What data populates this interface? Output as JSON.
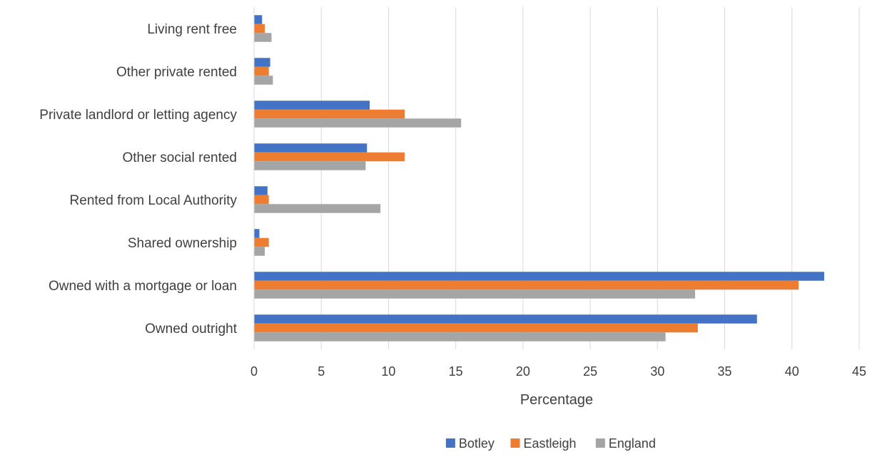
{
  "chart_data": {
    "type": "bar",
    "orientation": "horizontal",
    "categories": [
      "Owned outright",
      "Owned with a mortgage or loan",
      "Shared ownership",
      "Rented from Local Authority",
      "Other social rented",
      "Private landlord or letting agency",
      "Other private rented",
      "Living rent free"
    ],
    "series": [
      {
        "name": "Botley",
        "color": "#4472c4",
        "values": [
          37.4,
          42.4,
          0.4,
          1.0,
          8.4,
          8.6,
          1.2,
          0.6
        ]
      },
      {
        "name": "Eastleigh",
        "color": "#ed7d31",
        "values": [
          33.0,
          40.5,
          1.1,
          1.1,
          11.2,
          11.2,
          1.1,
          0.8
        ]
      },
      {
        "name": "England",
        "color": "#a5a5a5",
        "values": [
          30.6,
          32.8,
          0.8,
          9.4,
          8.3,
          15.4,
          1.4,
          1.3
        ]
      }
    ],
    "xlabel": "Percentage",
    "ylabel": "",
    "xlim": [
      0,
      45
    ],
    "xticks": [
      0,
      5,
      10,
      15,
      20,
      25,
      30,
      35,
      40,
      45
    ],
    "grid": "vertical",
    "legend_position": "bottom"
  }
}
